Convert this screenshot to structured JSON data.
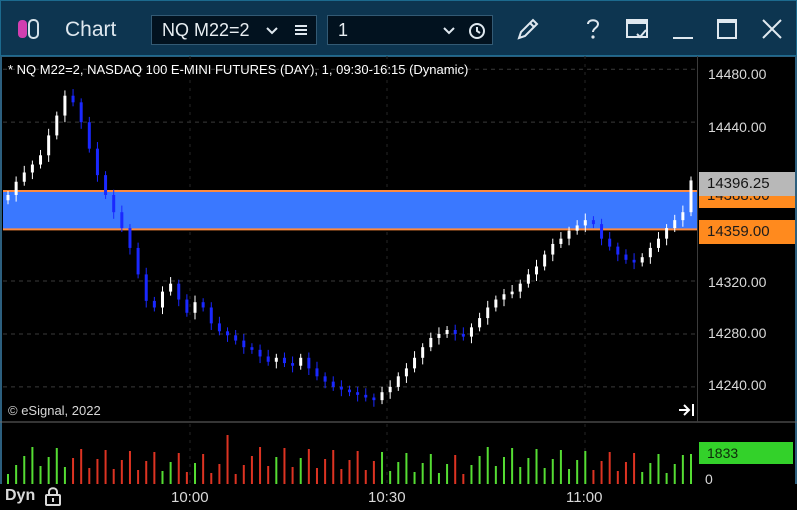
{
  "window": {
    "title": "Chart",
    "symbol": "NQ M22=2",
    "interval": "1",
    "icons": [
      "app-icon",
      "chevron-down-icon",
      "menu-icon",
      "chevron-down-icon",
      "clock-icon",
      "pencil-icon",
      "help-icon",
      "template-icon",
      "minimize-icon",
      "maximize-icon",
      "close-icon"
    ]
  },
  "chart": {
    "header": "* NQ M22=2, NASDAQ 100 E-MINI FUTURES (DAY), 1, 09:30-16:15 (Dynamic)",
    "copyright": "© eSignal, 2022",
    "price_ticks": [
      "14480.00",
      "14440.00",
      "14320.00",
      "14280.00",
      "14240.00"
    ],
    "last_price": "14396.25",
    "band_upper_label": "14388.00",
    "band_lower_label": "14359.00",
    "volume_label": "1833",
    "volume_zero": "0",
    "time_ticks": [
      "10:00",
      "10:30",
      "11:00"
    ],
    "mode_label": "Dyn",
    "colors": {
      "band": "#3a78ff",
      "band_edge": "#ff8a3d",
      "up_candle": "#ffffff",
      "down_candle": "#1a28ff",
      "volume_up": "#55dd33",
      "volume_down": "#dd3322",
      "last_price_box": "#b8b8b8",
      "lower_label_box": "#ff8a1e"
    }
  },
  "chart_data": {
    "type": "candlestick",
    "symbol": "NQ M22=2",
    "interval": "1",
    "y_range": [
      14215,
      14490
    ],
    "x_ticks": [
      "10:00",
      "10:30",
      "11:00"
    ],
    "price_labels": [
      14480,
      14440,
      14320,
      14280,
      14240
    ],
    "last_price": 14396.25,
    "band": {
      "upper": 14388.0,
      "lower": 14359.0
    },
    "volume_last": 1833,
    "close_series": [
      14385,
      14395,
      14402,
      14408,
      14415,
      14430,
      14445,
      14460,
      14455,
      14440,
      14420,
      14400,
      14385,
      14372,
      14360,
      14345,
      14325,
      14305,
      14300,
      14312,
      14318,
      14306,
      14296,
      14304,
      14300,
      14288,
      14282,
      14279,
      14275,
      14270,
      14268,
      14263,
      14259,
      14262,
      14258,
      14256,
      14262,
      14254,
      14248,
      14244,
      14240,
      14238,
      14236,
      14234,
      14232,
      14230,
      14236,
      14240,
      14248,
      14254,
      14262,
      14270,
      14277,
      14280,
      14283,
      14280,
      14278,
      14285,
      14292,
      14300,
      14306,
      14310,
      14312,
      14318,
      14325,
      14331,
      14340,
      14348,
      14352,
      14358,
      14362,
      14366,
      14363,
      14352,
      14346,
      14340,
      14336,
      14334,
      14338,
      14345,
      14352,
      14360,
      14366,
      14372,
      14396
    ]
  }
}
